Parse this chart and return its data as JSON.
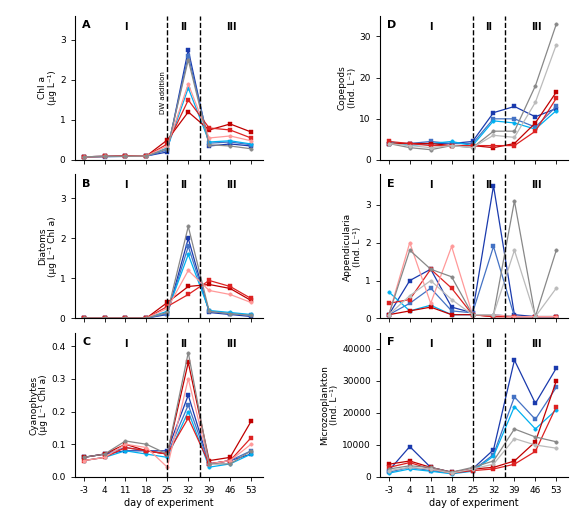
{
  "x_days": [
    -3,
    4,
    11,
    18,
    25,
    32,
    39,
    46,
    53
  ],
  "phase_lines": [
    25,
    36
  ],
  "dw_x": 25,
  "x_tick_positions": [
    -3,
    4,
    11,
    18,
    25,
    32,
    39,
    46,
    53
  ],
  "x_tick_labels": [
    "-3",
    "4",
    "11",
    "18",
    "25",
    "32",
    "39",
    "46",
    "53"
  ],
  "xlabel": "day of experiment",
  "panels": [
    {
      "label": "A",
      "ylabel": "Chl a\n(μg L⁻¹)",
      "ylim": [
        0,
        3.6
      ],
      "yticks": [
        0,
        1,
        2,
        3
      ],
      "series": [
        {
          "color": "#1a3aad",
          "marker": "s",
          "data": [
            0.08,
            0.09,
            0.1,
            0.1,
            0.2,
            2.75,
            0.35,
            0.4,
            0.35
          ]
        },
        {
          "color": "#4472c4",
          "marker": "s",
          "data": [
            0.08,
            0.08,
            0.09,
            0.09,
            0.25,
            2.6,
            0.42,
            0.45,
            0.38
          ]
        },
        {
          "color": "#00b0f0",
          "marker": "o",
          "data": [
            0.08,
            0.09,
            0.09,
            0.1,
            0.3,
            1.8,
            0.45,
            0.48,
            0.4
          ]
        },
        {
          "color": "#c00000",
          "marker": "s",
          "data": [
            0.08,
            0.09,
            0.1,
            0.1,
            0.5,
            1.2,
            0.75,
            0.9,
            0.7
          ]
        },
        {
          "color": "#dd2222",
          "marker": "s",
          "data": [
            0.08,
            0.09,
            0.1,
            0.1,
            0.4,
            1.5,
            0.8,
            0.75,
            0.55
          ]
        },
        {
          "color": "#ff9999",
          "marker": "o",
          "data": [
            0.08,
            0.09,
            0.09,
            0.1,
            0.35,
            1.9,
            0.55,
            0.6,
            0.48
          ]
        },
        {
          "color": "#888888",
          "marker": "o",
          "data": [
            0.08,
            0.09,
            0.09,
            0.1,
            0.28,
            2.5,
            0.38,
            0.35,
            0.28
          ]
        }
      ]
    },
    {
      "label": "B",
      "ylabel": "Diatoms\n(μg L⁻¹ Chl a)",
      "ylim": [
        0,
        3.6
      ],
      "yticks": [
        0,
        1,
        2,
        3
      ],
      "series": [
        {
          "color": "#1a3aad",
          "marker": "s",
          "data": [
            0.01,
            0.01,
            0.01,
            0.01,
            0.1,
            2.0,
            0.15,
            0.1,
            0.05
          ]
        },
        {
          "color": "#4472c4",
          "marker": "s",
          "data": [
            0.01,
            0.01,
            0.01,
            0.01,
            0.12,
            1.8,
            0.18,
            0.12,
            0.08
          ]
        },
        {
          "color": "#00b0f0",
          "marker": "o",
          "data": [
            0.01,
            0.01,
            0.01,
            0.01,
            0.18,
            1.6,
            0.2,
            0.15,
            0.1
          ]
        },
        {
          "color": "#c00000",
          "marker": "s",
          "data": [
            0.01,
            0.01,
            0.01,
            0.01,
            0.4,
            0.8,
            0.85,
            0.75,
            0.45
          ]
        },
        {
          "color": "#dd2222",
          "marker": "s",
          "data": [
            0.01,
            0.01,
            0.01,
            0.01,
            0.3,
            0.6,
            0.95,
            0.8,
            0.5
          ]
        },
        {
          "color": "#ff9999",
          "marker": "o",
          "data": [
            0.01,
            0.01,
            0.01,
            0.01,
            0.25,
            1.2,
            0.7,
            0.6,
            0.4
          ]
        },
        {
          "color": "#888888",
          "marker": "o",
          "data": [
            0.01,
            0.01,
            0.01,
            0.01,
            0.15,
            2.3,
            0.18,
            0.12,
            0.08
          ]
        }
      ]
    },
    {
      "label": "C",
      "ylabel": "Cyanophytes\n(μg L⁻¹ Chl a)",
      "ylim": [
        0,
        0.44
      ],
      "yticks": [
        0.0,
        0.1,
        0.2,
        0.3,
        0.4
      ],
      "series": [
        {
          "color": "#1a3aad",
          "marker": "s",
          "data": [
            0.06,
            0.07,
            0.08,
            0.08,
            0.08,
            0.25,
            0.04,
            0.05,
            0.07
          ]
        },
        {
          "color": "#4472c4",
          "marker": "s",
          "data": [
            0.06,
            0.07,
            0.09,
            0.08,
            0.07,
            0.22,
            0.04,
            0.05,
            0.08
          ]
        },
        {
          "color": "#00b0f0",
          "marker": "o",
          "data": [
            0.05,
            0.06,
            0.08,
            0.07,
            0.06,
            0.2,
            0.03,
            0.04,
            0.07
          ]
        },
        {
          "color": "#c00000",
          "marker": "s",
          "data": [
            0.06,
            0.07,
            0.1,
            0.08,
            0.07,
            0.35,
            0.05,
            0.06,
            0.17
          ]
        },
        {
          "color": "#dd2222",
          "marker": "s",
          "data": [
            0.05,
            0.06,
            0.09,
            0.08,
            0.07,
            0.18,
            0.04,
            0.05,
            0.12
          ]
        },
        {
          "color": "#ff9999",
          "marker": "o",
          "data": [
            0.05,
            0.06,
            0.1,
            0.09,
            0.03,
            0.3,
            0.04,
            0.05,
            0.1
          ]
        },
        {
          "color": "#888888",
          "marker": "o",
          "data": [
            0.06,
            0.07,
            0.11,
            0.1,
            0.07,
            0.38,
            0.04,
            0.04,
            0.08
          ]
        }
      ]
    },
    {
      "label": "D",
      "ylabel": "Copepods\n(Ind. L⁻¹)",
      "ylim": [
        0,
        35
      ],
      "yticks": [
        0,
        10,
        20,
        30
      ],
      "series": [
        {
          "color": "#1a3aad",
          "marker": "s",
          "data": [
            4.0,
            4.0,
            4.0,
            4.0,
            4.5,
            11.5,
            13.0,
            10.5,
            12.5
          ]
        },
        {
          "color": "#4472c4",
          "marker": "s",
          "data": [
            4.0,
            4.0,
            4.5,
            4.0,
            4.0,
            10.0,
            10.0,
            8.0,
            13.0
          ]
        },
        {
          "color": "#00b0f0",
          "marker": "o",
          "data": [
            4.5,
            3.5,
            4.0,
            4.5,
            3.5,
            9.5,
            9.0,
            7.5,
            12.0
          ]
        },
        {
          "color": "#c00000",
          "marker": "s",
          "data": [
            4.0,
            4.0,
            4.0,
            3.5,
            3.5,
            3.0,
            4.0,
            9.0,
            16.5
          ]
        },
        {
          "color": "#dd2222",
          "marker": "s",
          "data": [
            4.5,
            4.0,
            3.5,
            3.5,
            3.5,
            3.5,
            3.5,
            7.0,
            15.0
          ]
        },
        {
          "color": "#888888",
          "marker": "o",
          "data": [
            4.0,
            3.0,
            2.5,
            3.5,
            3.0,
            7.0,
            7.0,
            18.0,
            33.0
          ]
        },
        {
          "color": "#bbbbbb",
          "marker": "o",
          "data": [
            4.0,
            3.5,
            3.0,
            3.5,
            3.0,
            6.0,
            5.5,
            14.0,
            28.0
          ]
        }
      ]
    },
    {
      "label": "E",
      "ylabel": "Appendicularia\n(Ind. L⁻¹)",
      "ylim": [
        0,
        3.8
      ],
      "yticks": [
        0,
        1,
        2,
        3
      ],
      "series": [
        {
          "color": "#1a3aad",
          "marker": "s",
          "data": [
            0.1,
            1.0,
            1.3,
            0.3,
            0.15,
            3.5,
            0.1,
            0.05,
            0.05
          ]
        },
        {
          "color": "#4472c4",
          "marker": "s",
          "data": [
            0.1,
            0.4,
            0.8,
            0.2,
            0.15,
            1.9,
            0.05,
            0.05,
            0.05
          ]
        },
        {
          "color": "#00b0f0",
          "marker": "o",
          "data": [
            0.7,
            0.2,
            0.35,
            0.1,
            0.1,
            0.1,
            0.05,
            0.05,
            0.05
          ]
        },
        {
          "color": "#c00000",
          "marker": "s",
          "data": [
            0.1,
            0.2,
            0.3,
            0.1,
            0.1,
            0.05,
            0.05,
            0.05,
            0.05
          ]
        },
        {
          "color": "#dd2222",
          "marker": "s",
          "data": [
            0.4,
            0.5,
            1.3,
            0.8,
            0.1,
            0.05,
            0.05,
            0.05,
            0.05
          ]
        },
        {
          "color": "#ff9999",
          "marker": "o",
          "data": [
            0.1,
            2.0,
            0.4,
            1.9,
            0.1,
            0.1,
            0.05,
            0.05,
            0.05
          ]
        },
        {
          "color": "#888888",
          "marker": "o",
          "data": [
            0.1,
            1.8,
            1.3,
            1.1,
            0.1,
            0.1,
            3.1,
            0.05,
            1.8
          ]
        },
        {
          "color": "#bbbbbb",
          "marker": "o",
          "data": [
            0.1,
            0.6,
            1.0,
            0.5,
            0.1,
            0.1,
            1.8,
            0.05,
            0.8
          ]
        }
      ]
    },
    {
      "label": "F",
      "ylabel": "Microzooplankton\n(Ind. L⁻¹)",
      "ylim": [
        0,
        45000
      ],
      "yticks": [
        0,
        10000,
        20000,
        30000,
        40000
      ],
      "series": [
        {
          "color": "#1a3aad",
          "marker": "s",
          "data": [
            2000,
            9500,
            3000,
            1500,
            2500,
            8500,
            36500,
            23000,
            34000
          ]
        },
        {
          "color": "#4472c4",
          "marker": "s",
          "data": [
            1500,
            3000,
            2000,
            1200,
            2000,
            7000,
            25000,
            18000,
            28000
          ]
        },
        {
          "color": "#00b0f0",
          "marker": "o",
          "data": [
            1200,
            2500,
            1800,
            1000,
            1800,
            6500,
            22000,
            15000,
            21000
          ]
        },
        {
          "color": "#c00000",
          "marker": "s",
          "data": [
            4000,
            5000,
            3000,
            1500,
            2500,
            3000,
            5000,
            11000,
            30000
          ]
        },
        {
          "color": "#dd2222",
          "marker": "s",
          "data": [
            3000,
            4500,
            2500,
            1200,
            2000,
            2500,
            4000,
            8000,
            22000
          ]
        },
        {
          "color": "#888888",
          "marker": "o",
          "data": [
            2500,
            3500,
            3000,
            1500,
            3000,
            5000,
            15000,
            12500,
            11000
          ]
        },
        {
          "color": "#bbbbbb",
          "marker": "o",
          "data": [
            2000,
            3000,
            2500,
            1200,
            2500,
            4000,
            12000,
            10000,
            9000
          ]
        }
      ]
    }
  ]
}
